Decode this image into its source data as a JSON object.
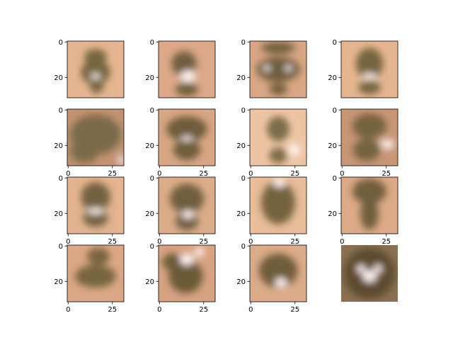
{
  "chart_data": {
    "type": "image-grid",
    "rows": 4,
    "cols": 4,
    "image_size": 32,
    "x_ticks": [
      0,
      25
    ],
    "y_ticks": [
      0,
      20
    ],
    "grid": false,
    "palette": {
      "background": "#ffffff",
      "axis": "#000000",
      "skin_light": "#e8b894",
      "skin_mid": "#c8946a",
      "shadow": "#7a6a48",
      "highlight": "#fff4f4"
    },
    "panels": [
      {
        "label": "",
        "x_axis": false,
        "y_axis": true,
        "bg": "#e6b690",
        "dark": "#75663f",
        "blobs": [
          [
            0.5,
            0.55,
            0.26,
            0.22
          ],
          [
            0.5,
            0.28,
            0.2,
            0.14
          ],
          [
            0.52,
            0.82,
            0.12,
            0.1
          ]
        ],
        "spots": [
          [
            0.5,
            0.62,
            0.08,
            0.05
          ]
        ]
      },
      {
        "label": "",
        "x_axis": false,
        "y_axis": true,
        "bg": "#dca888",
        "dark": "#6f5f3c",
        "blobs": [
          [
            0.45,
            0.4,
            0.22,
            0.22
          ],
          [
            0.5,
            0.85,
            0.2,
            0.12
          ]
        ],
        "spots": [
          [
            0.52,
            0.62,
            0.13,
            0.1
          ]
        ]
      },
      {
        "label": "",
        "x_axis": false,
        "y_axis": true,
        "bg": "#d9a784",
        "dark": "#6e5d3a",
        "blobs": [
          [
            0.5,
            0.5,
            0.38,
            0.22
          ],
          [
            0.5,
            0.12,
            0.3,
            0.1
          ],
          [
            0.5,
            0.85,
            0.16,
            0.1
          ]
        ],
        "spots": [
          [
            0.3,
            0.48,
            0.06,
            0.05
          ],
          [
            0.68,
            0.48,
            0.06,
            0.05
          ]
        ]
      },
      {
        "label": "",
        "x_axis": false,
        "y_axis": true,
        "bg": "#e6b690",
        "dark": "#75663f",
        "blobs": [
          [
            0.5,
            0.4,
            0.24,
            0.28
          ],
          [
            0.5,
            0.82,
            0.2,
            0.12
          ]
        ],
        "spots": [
          [
            0.5,
            0.62,
            0.12,
            0.05
          ]
        ]
      },
      {
        "label": "",
        "x_axis": true,
        "y_axis": true,
        "bg": "#c29271",
        "dark": "#7a6a48",
        "blobs": [
          [
            0.5,
            0.45,
            0.45,
            0.35
          ],
          [
            0.3,
            0.75,
            0.25,
            0.2
          ]
        ],
        "spots": [
          [
            0.95,
            0.9,
            0.05,
            0.1
          ]
        ]
      },
      {
        "label": "",
        "x_axis": true,
        "y_axis": true,
        "bg": "#d9a683",
        "dark": "#6d5d3a",
        "blobs": [
          [
            0.5,
            0.35,
            0.36,
            0.22
          ],
          [
            0.5,
            0.72,
            0.24,
            0.18
          ]
        ],
        "spots": [
          [
            0.5,
            0.52,
            0.1,
            0.04
          ]
        ]
      },
      {
        "label": "",
        "x_axis": true,
        "y_axis": true,
        "bg": "#eec5a3",
        "dark": "#7e6c48",
        "blobs": [
          [
            0.5,
            0.35,
            0.2,
            0.22
          ],
          [
            0.5,
            0.82,
            0.16,
            0.14
          ]
        ],
        "spots": [
          [
            0.78,
            0.72,
            0.1,
            0.1
          ]
        ]
      },
      {
        "label": "",
        "x_axis": true,
        "y_axis": true,
        "bg": "#c79675",
        "dark": "#76643f",
        "blobs": [
          [
            0.5,
            0.3,
            0.3,
            0.22
          ],
          [
            0.45,
            0.72,
            0.24,
            0.2
          ]
        ],
        "spots": [
          [
            0.82,
            0.62,
            0.12,
            0.08
          ]
        ]
      },
      {
        "label": "",
        "x_axis": true,
        "y_axis": true,
        "bg": "#e3b48f",
        "dark": "#736240",
        "blobs": [
          [
            0.5,
            0.35,
            0.26,
            0.26
          ],
          [
            0.5,
            0.72,
            0.22,
            0.16
          ]
        ],
        "spots": [
          [
            0.5,
            0.6,
            0.14,
            0.05
          ]
        ]
      },
      {
        "label": "",
        "x_axis": true,
        "y_axis": true,
        "bg": "#dcac88",
        "dark": "#6f5f3c",
        "blobs": [
          [
            0.5,
            0.38,
            0.3,
            0.26
          ],
          [
            0.5,
            0.78,
            0.2,
            0.16
          ]
        ],
        "spots": [
          [
            0.52,
            0.66,
            0.1,
            0.07
          ]
        ]
      },
      {
        "label": "",
        "x_axis": true,
        "y_axis": true,
        "bg": "#e8bd98",
        "dark": "#75643f",
        "blobs": [
          [
            0.5,
            0.45,
            0.3,
            0.38
          ]
        ],
        "spots": [
          [
            0.52,
            0.1,
            0.1,
            0.08
          ]
        ]
      },
      {
        "label": "",
        "x_axis": true,
        "y_axis": true,
        "bg": "#dcaa86",
        "dark": "#6f5f3c",
        "blobs": [
          [
            0.5,
            0.25,
            0.3,
            0.22
          ],
          [
            0.5,
            0.65,
            0.16,
            0.28
          ]
        ],
        "spots": []
      },
      {
        "label": "",
        "x_axis": true,
        "y_axis": true,
        "bg": "#dba784",
        "dark": "#77653f",
        "blobs": [
          [
            0.5,
            0.55,
            0.36,
            0.2
          ],
          [
            0.55,
            0.2,
            0.2,
            0.15
          ]
        ],
        "spots": []
      },
      {
        "label": "",
        "x_axis": true,
        "y_axis": true,
        "bg": "#d7a381",
        "dark": "#6c5b38",
        "blobs": [
          [
            0.48,
            0.55,
            0.3,
            0.3
          ],
          [
            0.25,
            0.3,
            0.18,
            0.15
          ]
        ],
        "spots": [
          [
            0.5,
            0.25,
            0.12,
            0.1
          ],
          [
            0.72,
            0.12,
            0.08,
            0.08
          ]
        ]
      },
      {
        "label": "",
        "x_axis": true,
        "y_axis": true,
        "bg": "#dcab88",
        "dark": "#6e5d3a",
        "blobs": [
          [
            0.5,
            0.45,
            0.34,
            0.3
          ]
        ],
        "spots": [
          [
            0.55,
            0.66,
            0.1,
            0.08
          ]
        ]
      },
      {
        "label": "",
        "x_axis": false,
        "y_axis": false,
        "bg": "#8a7050",
        "dark": "#5e4c2e",
        "blobs": [
          [
            0.5,
            0.5,
            0.45,
            0.45
          ]
        ],
        "spots": [
          [
            0.5,
            0.55,
            0.12,
            0.1
          ],
          [
            0.35,
            0.42,
            0.07,
            0.07
          ],
          [
            0.65,
            0.42,
            0.07,
            0.07
          ]
        ]
      }
    ]
  }
}
